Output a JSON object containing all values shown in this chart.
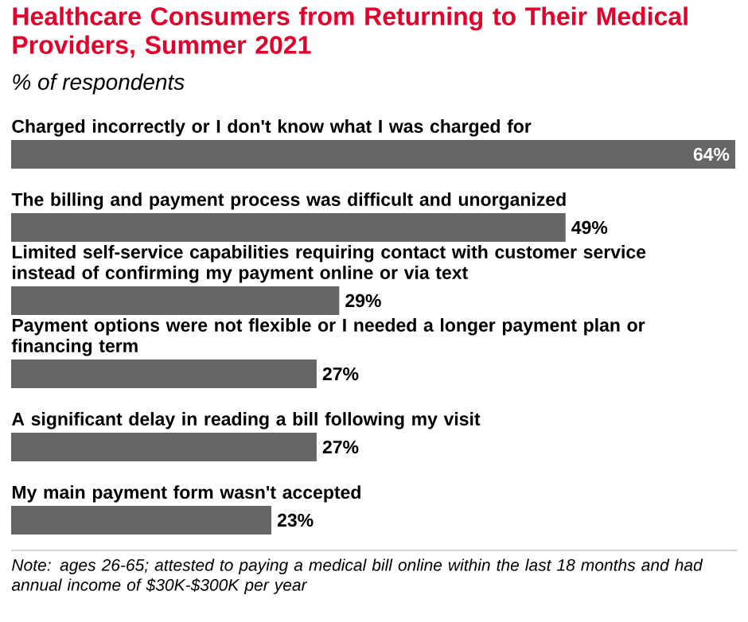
{
  "chart_data": {
    "type": "bar",
    "orientation": "horizontal",
    "title": "Healthcare Consumers from Returning to Their Medical Providers, Summer 2021",
    "subtitle": "% of respondents",
    "categories": [
      "Charged incorrectly or I don't know what I was charged for",
      "The billing and payment process was difficult and unorganized",
      "Limited self-service capabilities requiring contact with customer service instead of confirming my payment online or via text",
      "Payment options were not flexible or I needed a longer payment plan or financing term",
      "A significant delay in reading a bill following my visit",
      "My main payment form wasn't accepted"
    ],
    "values": [
      64,
      49,
      29,
      27,
      27,
      23
    ],
    "value_labels": [
      "64%",
      "49%",
      "29%",
      "27%",
      "27%",
      "23%"
    ],
    "color": "#666666",
    "xlim": [
      0,
      64
    ],
    "annotations": [
      "Note: ages 26-65; attested to paying a medical bill online within the last 18 months and had annual income of $30K-$300K per year"
    ]
  }
}
